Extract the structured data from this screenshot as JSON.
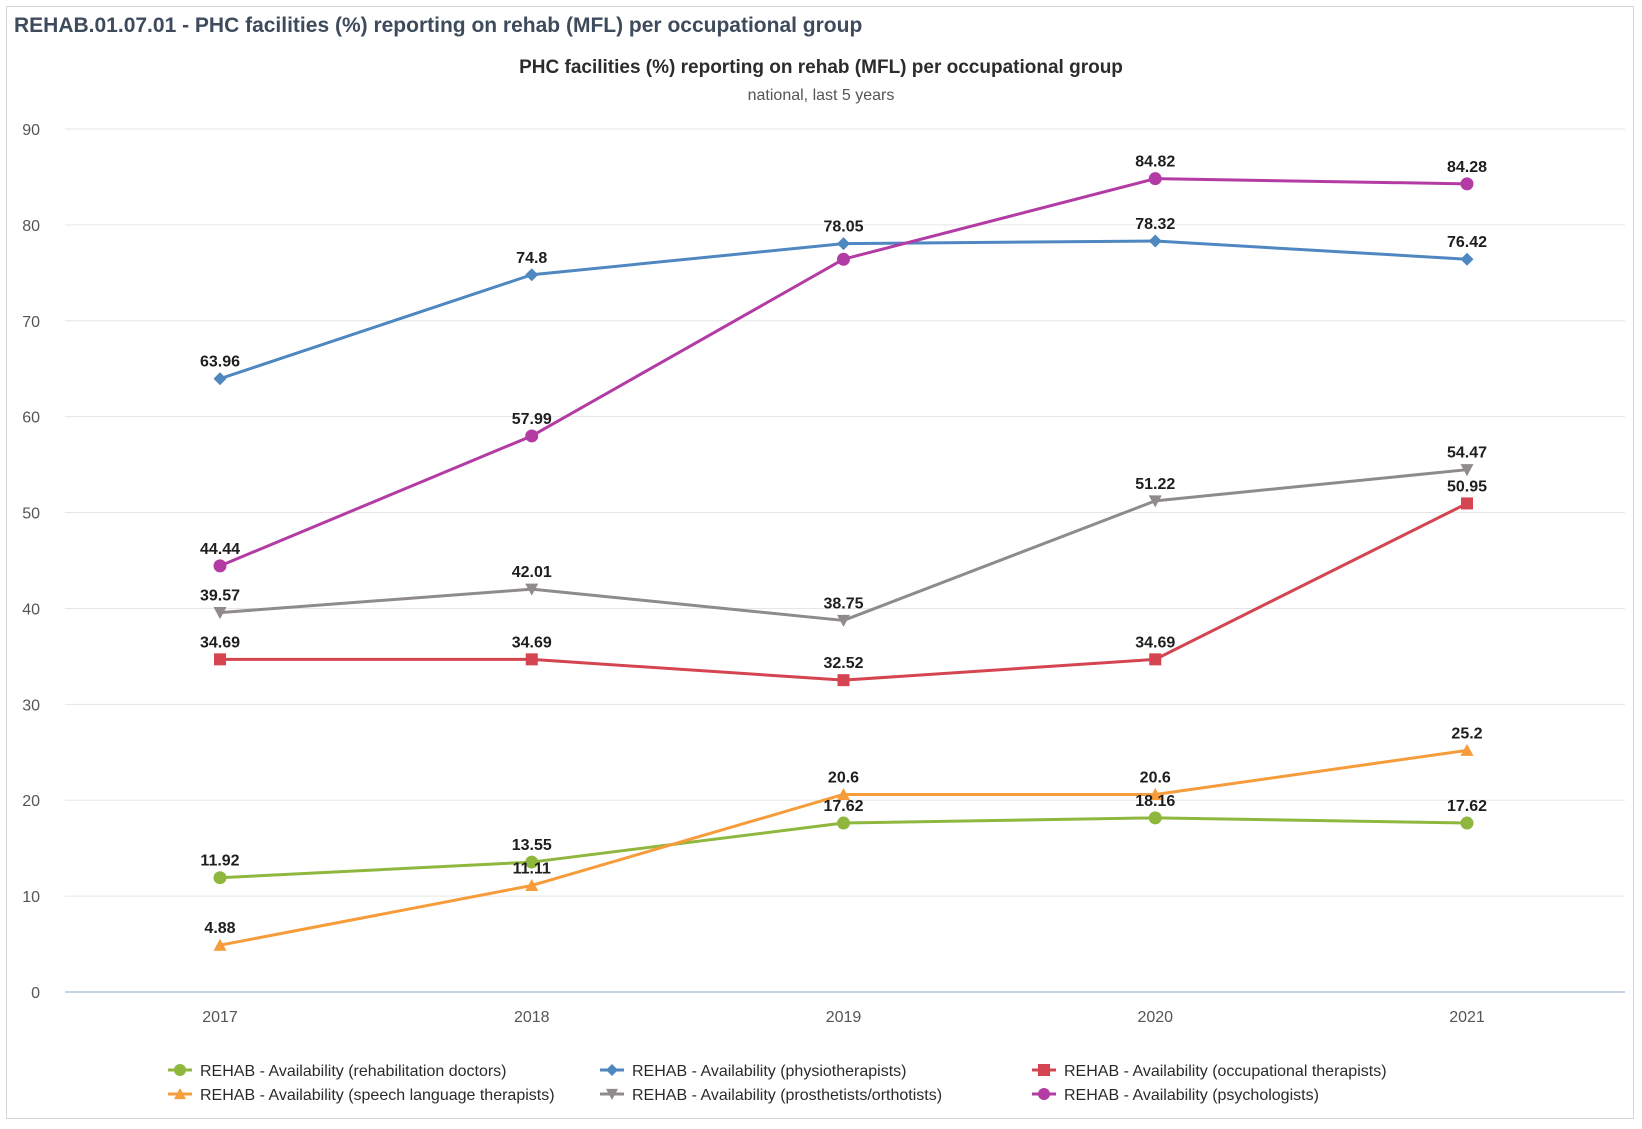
{
  "header": {
    "title": "REHAB.01.07.01 - PHC facilities (%) reporting on rehab (MFL) per occupational group"
  },
  "chart_data": {
    "type": "line",
    "title": "PHC facilities (%) reporting on rehab (MFL) per occupational group",
    "subtitle": "national, last 5 years",
    "xlabel": "",
    "ylabel": "",
    "categories": [
      "2017",
      "2018",
      "2019",
      "2020",
      "2021"
    ],
    "ylim": [
      0,
      90
    ],
    "yticks": [
      0,
      10,
      20,
      30,
      40,
      50,
      60,
      70,
      80,
      90
    ],
    "grid": true,
    "legend_position": "bottom",
    "series": [
      {
        "name": "REHAB - Availability (rehabilitation doctors)",
        "values": [
          11.92,
          13.55,
          17.62,
          18.16,
          17.62
        ],
        "color": "#8fb73e",
        "marker": "circle"
      },
      {
        "name": "REHAB - Availability (physiotherapists)",
        "values": [
          63.96,
          74.8,
          78.05,
          78.32,
          76.42
        ],
        "color": "#4f87c0",
        "marker": "diamond"
      },
      {
        "name": "REHAB - Availability (occupational therapists)",
        "values": [
          34.69,
          34.69,
          32.52,
          34.69,
          50.95
        ],
        "color": "#d44451",
        "marker": "square"
      },
      {
        "name": "REHAB - Availability (speech language therapists)",
        "values": [
          4.88,
          11.11,
          20.6,
          20.6,
          25.2
        ],
        "color": "#f79c3b",
        "marker": "triangle"
      },
      {
        "name": "REHAB - Availability (prosthetists/orthotists)",
        "values": [
          39.57,
          42.01,
          38.75,
          51.22,
          54.47
        ],
        "color": "#8f8b8b",
        "marker": "triangle-down"
      },
      {
        "name": "REHAB - Availability (psychologists)",
        "values": [
          44.44,
          57.99,
          76.42,
          84.82,
          84.28
        ],
        "color": "#b33ca4",
        "marker": "circle"
      }
    ],
    "data_labels": {
      "REHAB - Availability (rehabilitation doctors)": [
        "11.92",
        "13.55",
        "17.62",
        "18.16",
        "17.62"
      ],
      "REHAB - Availability (physiotherapists)": [
        "63.96",
        "74.8",
        "78.05",
        "78.32",
        "76.42"
      ],
      "REHAB - Availability (occupational therapists)": [
        "34.69",
        "34.69",
        "32.52",
        "34.69",
        "50.95"
      ],
      "REHAB - Availability (speech language therapists)": [
        "4.88",
        "11.11",
        "20.6",
        "20.6",
        "25.2"
      ],
      "REHAB - Availability (prosthetists/orthotists)": [
        "39.57",
        "42.01",
        "38.75",
        "51.22",
        "54.47"
      ],
      "REHAB - Availability (psychologists)": [
        "44.44",
        "57.99",
        "",
        "84.82",
        "84.28"
      ]
    }
  }
}
